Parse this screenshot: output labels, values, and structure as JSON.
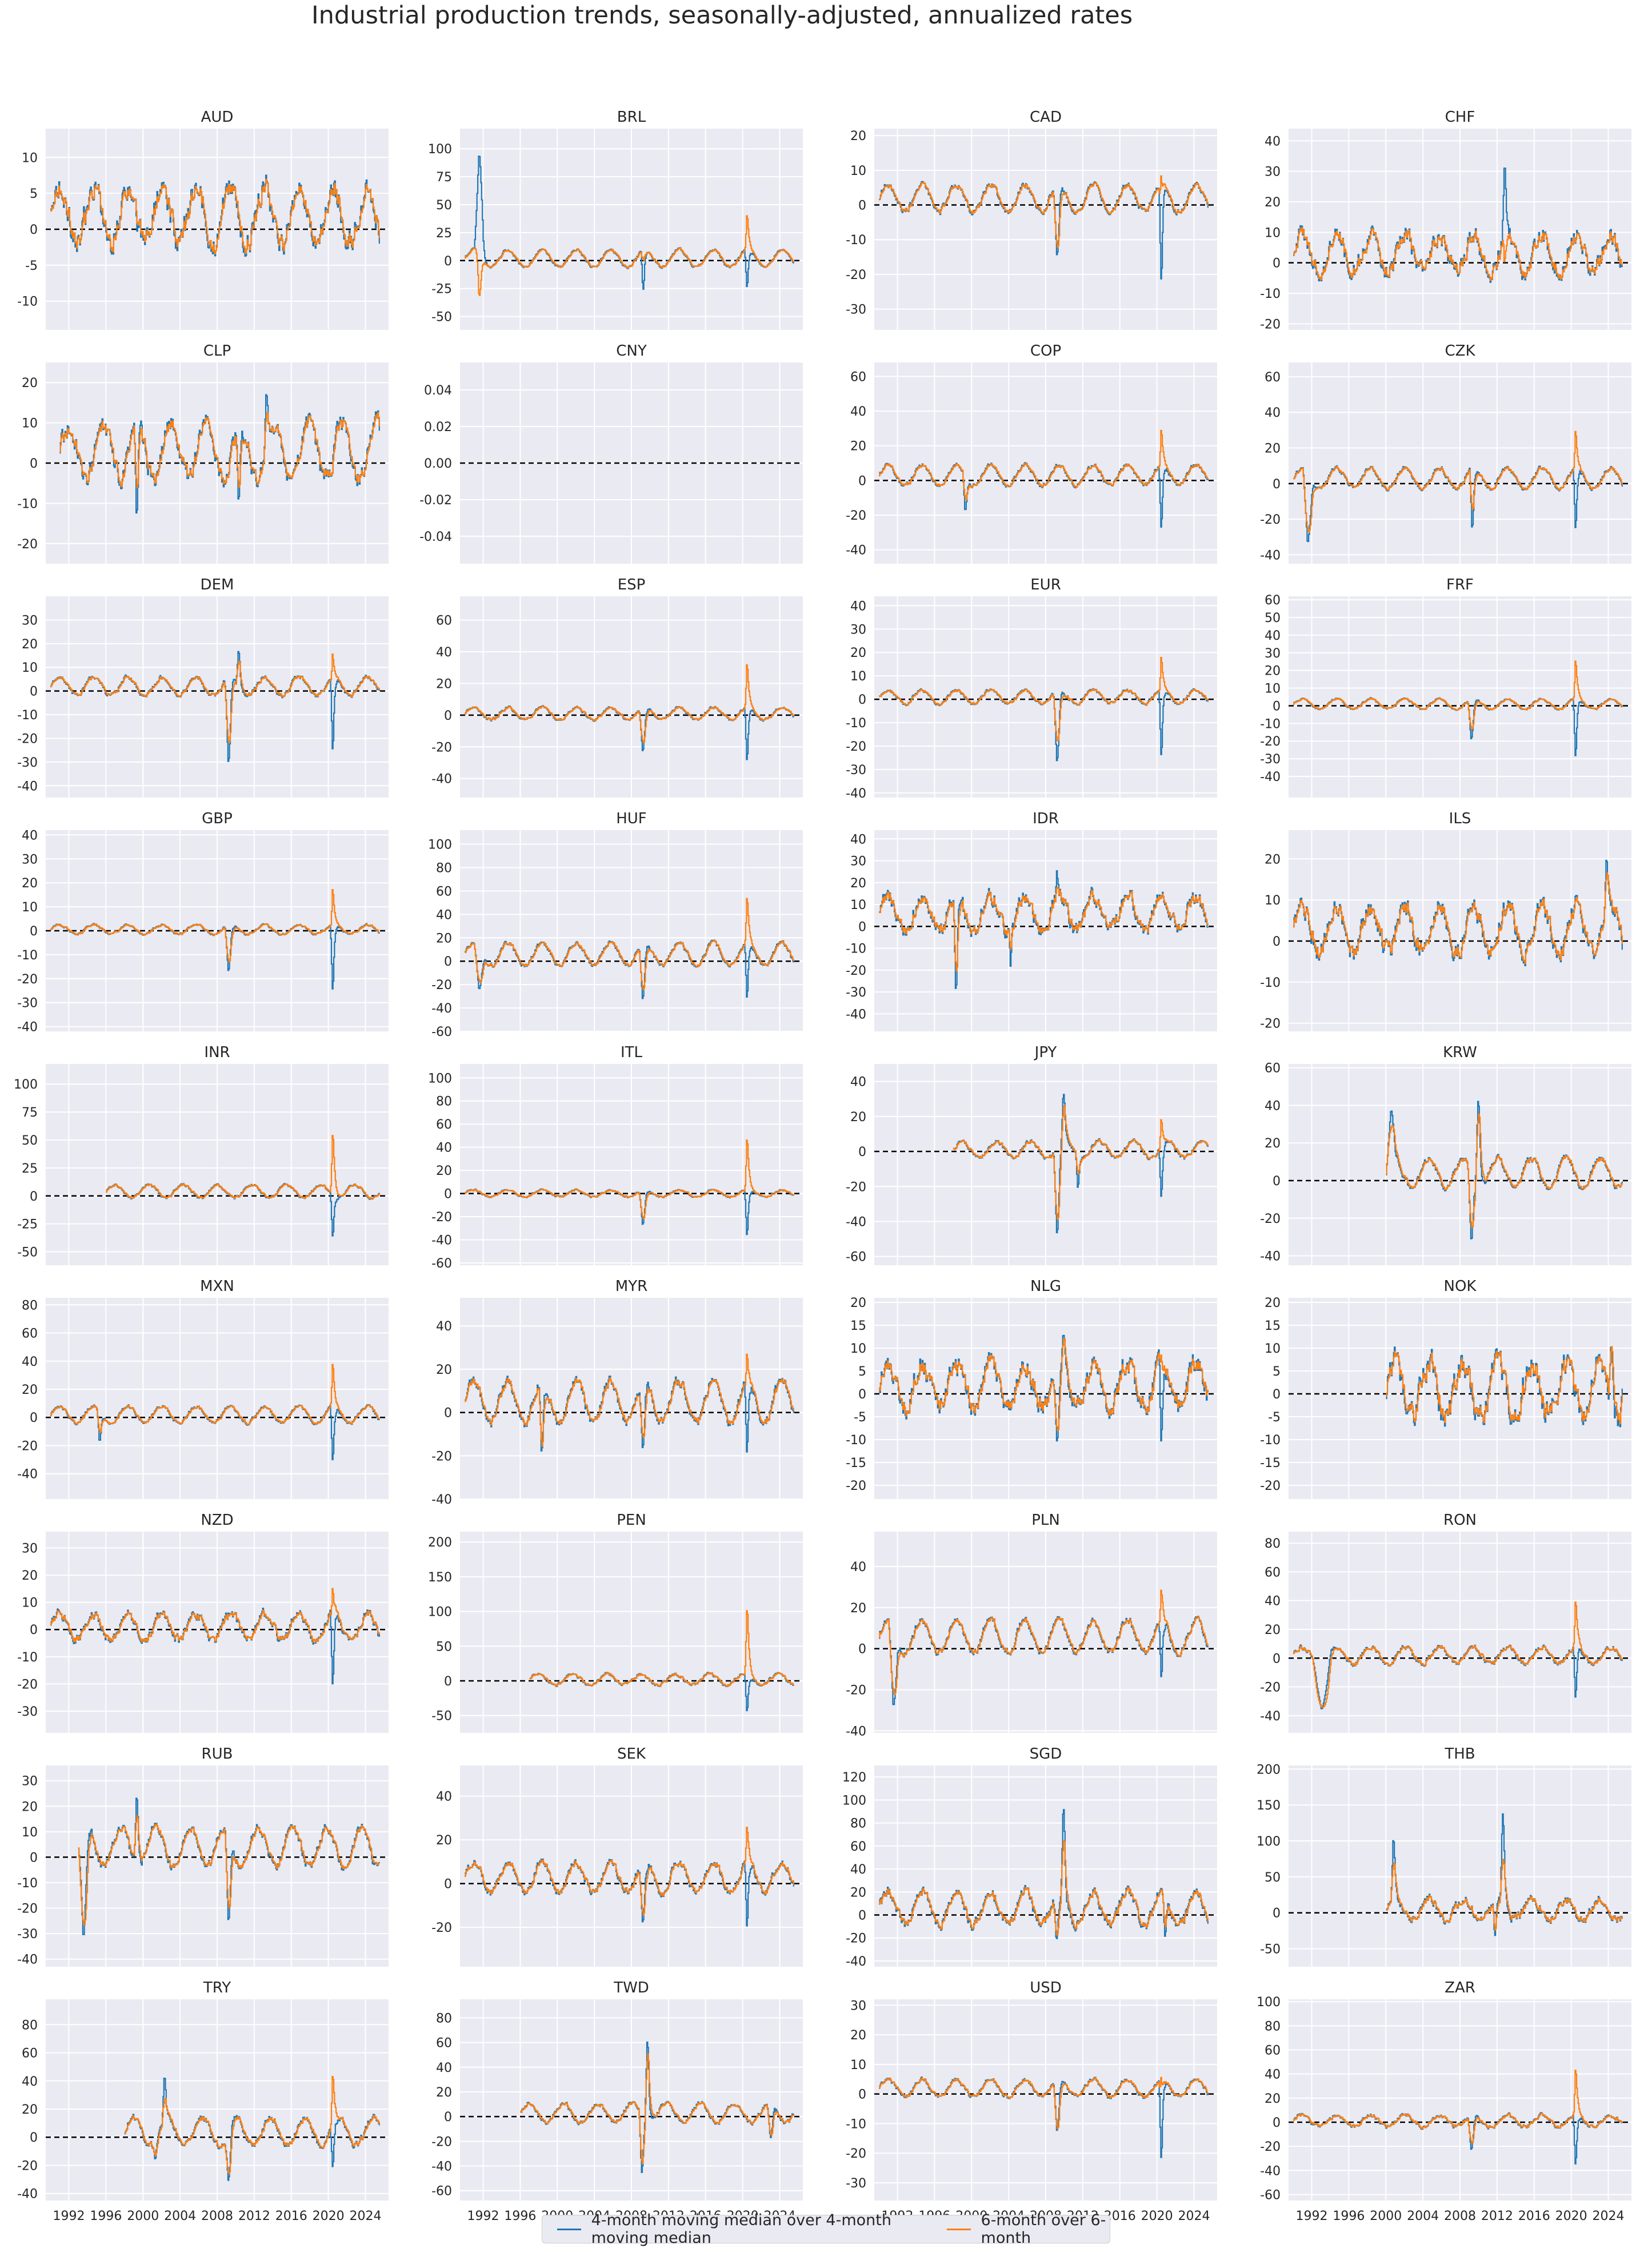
{
  "title": "Industrial production trends, seasonally-adjusted, annualized rates",
  "legend": {
    "series_a": "4-month moving median over 4-month moving median",
    "series_b": "6-month over 6-month"
  },
  "colors": {
    "series_a": "#1f77b4",
    "series_b": "#ff7f0e",
    "zero_line": "#000000",
    "background": "#eaeaf2"
  },
  "x_ticks": [
    "1992",
    "1996",
    "2000",
    "2004",
    "2008",
    "2012",
    "2016",
    "2020",
    "2024"
  ],
  "chart_data": [
    {
      "type": "line",
      "title": "AUD",
      "start": 1990.0,
      "ylim": [
        -14,
        14
      ],
      "yticks": [
        -10,
        -5,
        0,
        5,
        10
      ],
      "shape": {
        "amp": 4,
        "base": 2,
        "vol": 3
      },
      "events": []
    },
    {
      "type": "line",
      "title": "BRL",
      "start": 1990.0,
      "ylim": [
        -62,
        118
      ],
      "yticks": [
        -50,
        -25,
        0,
        25,
        50,
        75,
        100
      ],
      "shape": {
        "amp": 8,
        "base": 2,
        "vol": 2
      },
      "events": [
        [
          1991.0,
          1992.0,
          110,
          -60
        ],
        [
          2009.0,
          2009.4,
          -45,
          10
        ],
        [
          2020.2,
          2020.6,
          -40,
          80
        ]
      ]
    },
    {
      "type": "line",
      "title": "CAD",
      "start": 1990.0,
      "ylim": [
        -36,
        22
      ],
      "yticks": [
        -30,
        -20,
        -10,
        0,
        10,
        20
      ],
      "shape": {
        "amp": 4,
        "base": 2,
        "vol": 1.5
      },
      "events": [
        [
          2008.8,
          2009.5,
          -20,
          -15
        ],
        [
          2020.2,
          2020.6,
          -35,
          20
        ]
      ]
    },
    {
      "type": "line",
      "title": "CHF",
      "start": 1990.0,
      "ylim": [
        -22,
        44
      ],
      "yticks": [
        -20,
        -10,
        0,
        10,
        20,
        30,
        40
      ],
      "shape": {
        "amp": 6,
        "base": 3,
        "vol": 5
      },
      "events": [
        [
          2012.5,
          2013.0,
          40,
          -10
        ]
      ]
    },
    {
      "type": "line",
      "title": "CLP",
      "start": 1991.0,
      "ylim": [
        -25,
        25
      ],
      "yticks": [
        -20,
        -10,
        0,
        10,
        20
      ],
      "shape": {
        "amp": 7,
        "base": 3,
        "vol": 4
      },
      "events": [
        [
          1999.0,
          1999.5,
          -22,
          -10
        ],
        [
          2013.0,
          2013.5,
          23,
          15
        ],
        [
          2010.0,
          2010.5,
          -16,
          -10
        ]
      ]
    },
    {
      "type": "line",
      "title": "CNY",
      "start": 1990.0,
      "ylim": [
        -0.055,
        0.055
      ],
      "yticks": [
        -0.04,
        -0.02,
        0.0,
        0.02,
        0.04
      ],
      "shape": {
        "amp": 0,
        "base": 0,
        "vol": 0
      },
      "events": [],
      "empty": true
    },
    {
      "type": "line",
      "title": "COP",
      "start": 1990.0,
      "ylim": [
        -48,
        68
      ],
      "yticks": [
        -40,
        -20,
        0,
        20,
        40,
        60
      ],
      "shape": {
        "amp": 6,
        "base": 3,
        "vol": 2
      },
      "events": [
        [
          1999.0,
          1999.5,
          -25,
          -15
        ],
        [
          2020.2,
          2020.6,
          -45,
          60
        ]
      ]
    },
    {
      "type": "line",
      "title": "CZK",
      "start": 1990.0,
      "ylim": [
        -45,
        68
      ],
      "yticks": [
        -40,
        -20,
        0,
        20,
        40,
        60
      ],
      "shape": {
        "amp": 6,
        "base": 3,
        "vol": 2
      },
      "events": [
        [
          1991.0,
          1992.0,
          -40,
          -30
        ],
        [
          2009.0,
          2009.5,
          -38,
          -20
        ],
        [
          2020.2,
          2020.6,
          -42,
          60
        ]
      ]
    },
    {
      "type": "line",
      "title": "DEM",
      "start": 1990.0,
      "ylim": [
        -45,
        40
      ],
      "yticks": [
        -40,
        -30,
        -20,
        -10,
        0,
        10,
        20,
        30
      ],
      "shape": {
        "amp": 4,
        "base": 2,
        "vol": 1.5
      },
      "events": [
        [
          2008.8,
          2009.5,
          -40,
          -25
        ],
        [
          2020.2,
          2020.6,
          -40,
          35
        ],
        [
          2010.0,
          2010.5,
          22,
          15
        ]
      ]
    },
    {
      "type": "line",
      "title": "ESP",
      "start": 1990.0,
      "ylim": [
        -52,
        75
      ],
      "yticks": [
        -40,
        -20,
        0,
        20,
        40,
        60
      ],
      "shape": {
        "amp": 4,
        "base": 1,
        "vol": 1.5
      },
      "events": [
        [
          2008.8,
          2009.5,
          -30,
          -20
        ],
        [
          2020.2,
          2020.6,
          -45,
          68
        ]
      ]
    },
    {
      "type": "line",
      "title": "EUR",
      "start": 1990.0,
      "ylim": [
        -42,
        44
      ],
      "yticks": [
        -40,
        -30,
        -20,
        -10,
        0,
        10,
        20,
        30,
        40
      ],
      "shape": {
        "amp": 3,
        "base": 1,
        "vol": 1.2
      },
      "events": [
        [
          2008.8,
          2009.5,
          -35,
          -20
        ],
        [
          2020.2,
          2020.6,
          -38,
          40
        ]
      ]
    },
    {
      "type": "line",
      "title": "FRF",
      "start": 1990.0,
      "ylim": [
        -52,
        62
      ],
      "yticks": [
        -40,
        -30,
        -20,
        -10,
        0,
        10,
        20,
        30,
        40,
        50,
        60
      ],
      "shape": {
        "amp": 3,
        "base": 1,
        "vol": 1
      },
      "events": [
        [
          2008.8,
          2009.5,
          -25,
          -15
        ],
        [
          2020.2,
          2020.6,
          -45,
          56
        ]
      ]
    },
    {
      "type": "line",
      "title": "GBP",
      "start": 1990.0,
      "ylim": [
        -42,
        42
      ],
      "yticks": [
        -40,
        -30,
        -20,
        -10,
        0,
        10,
        20,
        30,
        40
      ],
      "shape": {
        "amp": 2,
        "base": 0.5,
        "vol": 0.8
      },
      "events": [
        [
          2008.8,
          2009.5,
          -22,
          -15
        ],
        [
          2020.2,
          2020.6,
          -38,
          40
        ]
      ]
    },
    {
      "type": "line",
      "title": "HUF",
      "start": 1990.0,
      "ylim": [
        -60,
        112
      ],
      "yticks": [
        -60,
        -40,
        -20,
        0,
        20,
        40,
        60,
        80,
        100
      ],
      "shape": {
        "amp": 10,
        "base": 6,
        "vol": 3
      },
      "events": [
        [
          1991.0,
          1992.0,
          -30,
          -20
        ],
        [
          2008.8,
          2009.5,
          -45,
          -30
        ],
        [
          2020.2,
          2020.6,
          -55,
          105
        ]
      ]
    },
    {
      "type": "line",
      "title": "IDR",
      "start": 1990.0,
      "ylim": [
        -48,
        44
      ],
      "yticks": [
        -40,
        -30,
        -20,
        -10,
        0,
        10,
        20,
        30,
        40
      ],
      "shape": {
        "amp": 8,
        "base": 6,
        "vol": 6
      },
      "events": [
        [
          1998.0,
          1998.5,
          -45,
          -30
        ],
        [
          2004.0,
          2004.3,
          -30,
          -15
        ],
        [
          2009.0,
          2009.3,
          35,
          20
        ]
      ]
    },
    {
      "type": "line",
      "title": "ILS",
      "start": 1990.0,
      "ylim": [
        -22,
        27
      ],
      "yticks": [
        -20,
        -10,
        0,
        10,
        20
      ],
      "shape": {
        "amp": 6,
        "base": 3,
        "vol": 4
      },
      "events": [
        [
          2023.5,
          2024.0,
          25,
          20
        ]
      ]
    },
    {
      "type": "line",
      "title": "INR",
      "start": 1996.0,
      "ylim": [
        -62,
        118
      ],
      "yticks": [
        -50,
        -25,
        0,
        25,
        50,
        75,
        100
      ],
      "shape": {
        "amp": 6,
        "base": 4,
        "vol": 2
      },
      "events": [
        [
          2020.2,
          2020.6,
          -55,
          115
        ]
      ]
    },
    {
      "type": "line",
      "title": "ITL",
      "start": 1990.0,
      "ylim": [
        -62,
        112
      ],
      "yticks": [
        -60,
        -40,
        -20,
        0,
        20,
        40,
        60,
        80,
        100
      ],
      "shape": {
        "amp": 3,
        "base": 0,
        "vol": 1.5
      },
      "events": [
        [
          2008.8,
          2009.5,
          -35,
          -25
        ],
        [
          2020.2,
          2020.6,
          -55,
          100
        ]
      ]
    },
    {
      "type": "line",
      "title": "JPY",
      "start": 1998.0,
      "ylim": [
        -65,
        50
      ],
      "yticks": [
        -60,
        -40,
        -20,
        0,
        20,
        40
      ],
      "shape": {
        "amp": 5,
        "base": 1,
        "vol": 2
      },
      "events": [
        [
          2008.8,
          2009.5,
          -60,
          -45
        ],
        [
          2009.6,
          2010.1,
          45,
          35
        ],
        [
          2011.2,
          2011.6,
          -30,
          -15
        ],
        [
          2020.2,
          2020.6,
          -40,
          43
        ]
      ]
    },
    {
      "type": "line",
      "title": "KRW",
      "start": 2000.0,
      "ylim": [
        -45,
        62
      ],
      "yticks": [
        -40,
        -20,
        0,
        20,
        40,
        60
      ],
      "shape": {
        "amp": 8,
        "base": 4,
        "vol": 3
      },
      "events": [
        [
          2000.0,
          2001.0,
          42,
          30
        ],
        [
          2008.8,
          2009.5,
          -42,
          -30
        ],
        [
          2009.6,
          2010.2,
          58,
          45
        ]
      ]
    },
    {
      "type": "line",
      "title": "MXN",
      "start": 1990.0,
      "ylim": [
        -58,
        85
      ],
      "yticks": [
        -40,
        -20,
        0,
        20,
        40,
        60,
        80
      ],
      "shape": {
        "amp": 6,
        "base": 2,
        "vol": 2
      },
      "events": [
        [
          1995.0,
          1995.5,
          -25,
          -15
        ],
        [
          2020.2,
          2020.6,
          -50,
          78
        ]
      ]
    },
    {
      "type": "line",
      "title": "MYR",
      "start": 1990.0,
      "ylim": [
        -40,
        53
      ],
      "yticks": [
        -40,
        -20,
        0,
        20,
        40
      ],
      "shape": {
        "amp": 10,
        "base": 5,
        "vol": 4
      },
      "events": [
        [
          1998.0,
          1998.5,
          -30,
          -25
        ],
        [
          2008.8,
          2009.5,
          -25,
          -15
        ],
        [
          2020.2,
          2020.6,
          -35,
          50
        ]
      ]
    },
    {
      "type": "line",
      "title": "NLG",
      "start": 1990.0,
      "ylim": [
        -23,
        21
      ],
      "yticks": [
        -20,
        -15,
        -10,
        -5,
        0,
        5,
        10,
        15,
        20
      ],
      "shape": {
        "amp": 5,
        "base": 2,
        "vol": 4
      },
      "events": [
        [
          2008.8,
          2009.5,
          -15,
          -10
        ],
        [
          2009.6,
          2010.1,
          16,
          15
        ],
        [
          2020.2,
          2020.6,
          -20,
          14
        ]
      ]
    },
    {
      "type": "line",
      "title": "NOK",
      "start": 2000.0,
      "ylim": [
        -23,
        21
      ],
      "yticks": [
        -20,
        -15,
        -10,
        -5,
        0,
        5,
        10,
        15,
        20
      ],
      "shape": {
        "amp": 6,
        "base": 1,
        "vol": 5
      },
      "events": [
        [
          2024.0,
          2024.5,
          14,
          14
        ]
      ]
    },
    {
      "type": "line",
      "title": "NZD",
      "start": 1990.0,
      "ylim": [
        -38,
        36
      ],
      "yticks": [
        -30,
        -20,
        -10,
        0,
        10,
        20,
        30
      ],
      "shape": {
        "amp": 5,
        "base": 1,
        "vol": 3
      },
      "events": [
        [
          2020.2,
          2020.6,
          -33,
          32
        ]
      ]
    },
    {
      "type": "line",
      "title": "PEN",
      "start": 1997.0,
      "ylim": [
        -75,
        215
      ],
      "yticks": [
        -50,
        0,
        50,
        100,
        150,
        200
      ],
      "shape": {
        "amp": 8,
        "base": 2,
        "vol": 4
      },
      "events": [
        [
          2020.2,
          2020.6,
          -70,
          205
        ]
      ]
    },
    {
      "type": "line",
      "title": "PLN",
      "start": 1990.0,
      "ylim": [
        -41,
        57
      ],
      "yticks": [
        -40,
        -20,
        0,
        20,
        40
      ],
      "shape": {
        "amp": 8,
        "base": 6,
        "vol": 3
      },
      "events": [
        [
          1991.0,
          1992.0,
          -35,
          -25
        ],
        [
          2020.2,
          2020.6,
          -28,
          52
        ]
      ]
    },
    {
      "type": "line",
      "title": "RON",
      "start": 1990.0,
      "ylim": [
        -52,
        88
      ],
      "yticks": [
        -40,
        -20,
        0,
        20,
        40,
        60,
        80
      ],
      "shape": {
        "amp": 6,
        "base": 2,
        "vol": 3
      },
      "events": [
        [
          1992.0,
          1994.0,
          -38,
          -35
        ],
        [
          2020.2,
          2020.6,
          -45,
          80
        ]
      ]
    },
    {
      "type": "line",
      "title": "RUB",
      "start": 1993.0,
      "ylim": [
        -43,
        36
      ],
      "yticks": [
        -40,
        -30,
        -20,
        -10,
        0,
        10,
        20,
        30
      ],
      "shape": {
        "amp": 8,
        "base": 4,
        "vol": 3
      },
      "events": [
        [
          1993.0,
          1994.0,
          -38,
          -30
        ],
        [
          1999.0,
          1999.5,
          33,
          20
        ],
        [
          2008.8,
          2009.5,
          -35,
          -25
        ]
      ]
    },
    {
      "type": "line",
      "title": "SEK",
      "start": 1990.0,
      "ylim": [
        -38,
        54
      ],
      "yticks": [
        -20,
        0,
        20,
        40
      ],
      "shape": {
        "amp": 7,
        "base": 3,
        "vol": 3
      },
      "events": [
        [
          2008.8,
          2009.5,
          -25,
          -18
        ],
        [
          2020.2,
          2020.6,
          -35,
          50
        ]
      ]
    },
    {
      "type": "line",
      "title": "SGD",
      "start": 1990.0,
      "ylim": [
        -45,
        130
      ],
      "yticks": [
        -40,
        -20,
        0,
        20,
        40,
        60,
        80,
        100,
        120
      ],
      "shape": {
        "amp": 15,
        "base": 6,
        "vol": 8
      },
      "events": [
        [
          2009.6,
          2010.1,
          125,
          75
        ],
        [
          2008.8,
          2009.4,
          -35,
          -25
        ],
        [
          2020.6,
          2021.0,
          -40,
          -20
        ]
      ]
    },
    {
      "type": "line",
      "title": "THB",
      "start": 2000.0,
      "ylim": [
        -75,
        205
      ],
      "yticks": [
        -50,
        0,
        50,
        100,
        150,
        200
      ],
      "shape": {
        "amp": 15,
        "base": 5,
        "vol": 10
      },
      "events": [
        [
          2000.5,
          2001.0,
          135,
          80
        ],
        [
          2012.3,
          2012.8,
          190,
          70
        ],
        [
          2011.5,
          2011.9,
          -60,
          -40
        ]
      ]
    },
    {
      "type": "line",
      "title": "TRY",
      "start": 1998.0,
      "ylim": [
        -45,
        98
      ],
      "yticks": [
        -40,
        -20,
        0,
        20,
        40,
        60,
        80
      ],
      "shape": {
        "amp": 10,
        "base": 4,
        "vol": 4
      },
      "events": [
        [
          2001.0,
          2001.5,
          -20,
          -15
        ],
        [
          2002.0,
          2002.5,
          55,
          30
        ],
        [
          2008.8,
          2009.5,
          -40,
          -30
        ],
        [
          2020.2,
          2020.6,
          -35,
          88
        ]
      ]
    },
    {
      "type": "line",
      "title": "TWD",
      "start": 1996.0,
      "ylim": [
        -68,
        95
      ],
      "yticks": [
        -60,
        -40,
        -20,
        0,
        20,
        40,
        60,
        80
      ],
      "shape": {
        "amp": 8,
        "base": 3,
        "vol": 3
      },
      "events": [
        [
          2008.8,
          2009.3,
          -65,
          -50
        ],
        [
          2009.4,
          2009.9,
          88,
          70
        ],
        [
          2022.6,
          2023.3,
          -25,
          -20
        ]
      ]
    },
    {
      "type": "line",
      "title": "USD",
      "start": 1990.0,
      "ylim": [
        -36,
        32
      ],
      "yticks": [
        -30,
        -20,
        -10,
        0,
        10,
        20,
        30
      ],
      "shape": {
        "amp": 3,
        "base": 2,
        "vol": 1.2
      },
      "events": [
        [
          2008.8,
          2009.5,
          -17,
          -15
        ],
        [
          2020.2,
          2020.6,
          -35,
          15
        ]
      ]
    },
    {
      "type": "line",
      "title": "ZAR",
      "start": 1990.0,
      "ylim": [
        -65,
        102
      ],
      "yticks": [
        -60,
        -40,
        -20,
        0,
        20,
        40,
        60,
        80,
        100
      ],
      "shape": {
        "amp": 5,
        "base": 1,
        "vol": 3
      },
      "events": [
        [
          2008.8,
          2009.5,
          -30,
          -20
        ],
        [
          2020.2,
          2020.6,
          -55,
          92
        ]
      ]
    }
  ]
}
